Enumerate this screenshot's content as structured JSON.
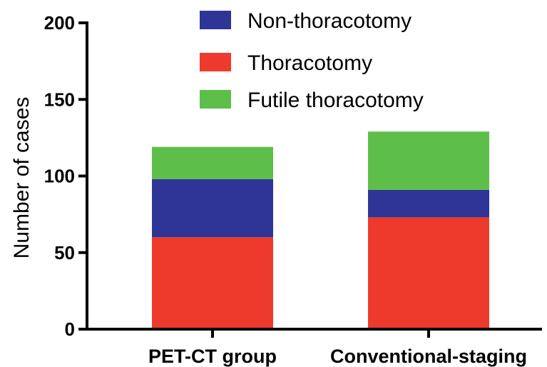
{
  "chart_data": {
    "type": "bar",
    "stacked": true,
    "categories": [
      "PET-CT group",
      "Conventional-staging"
    ],
    "series": [
      {
        "name": "Thoracotomy",
        "color": "#ee3a2d",
        "values": [
          60,
          73
        ]
      },
      {
        "name": "Non-thoracotomy",
        "color": "#2e3597",
        "values": [
          38,
          18
        ]
      },
      {
        "name": "Futile thoracotomy",
        "color": "#5dbf49",
        "values": [
          21,
          38
        ]
      }
    ],
    "legend_order": [
      "Non-thoracotomy",
      "Thoracotomy",
      "Futile thoracotomy"
    ],
    "ylabel": "Number of cases",
    "xlabel": "",
    "ylim": [
      0,
      200
    ],
    "yticks": [
      0,
      50,
      100,
      150,
      200
    ],
    "grid": false,
    "legend_position": "top-right"
  }
}
